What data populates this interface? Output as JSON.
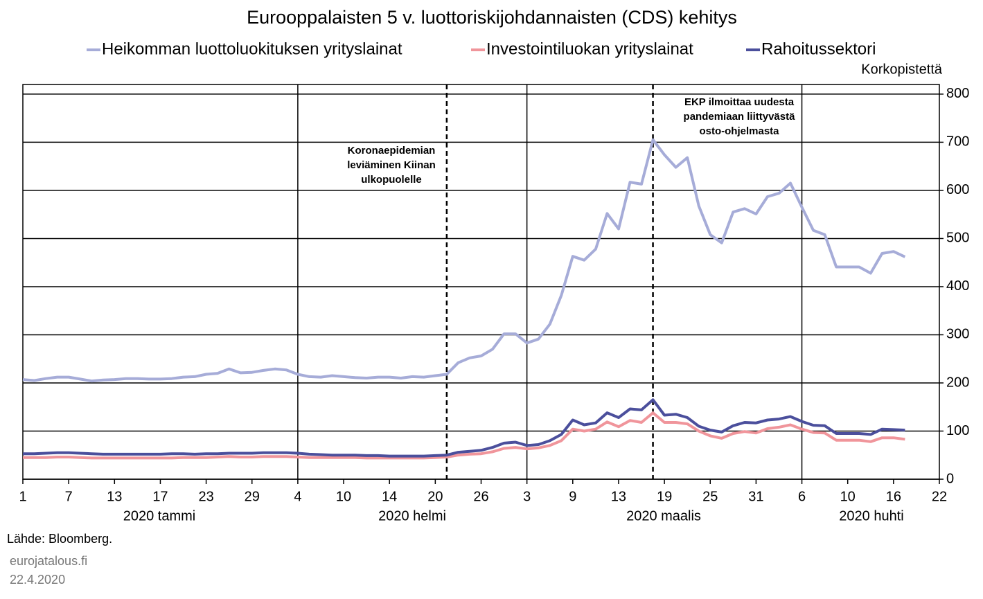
{
  "chart_data": {
    "type": "line",
    "title": "Eurooppalaisten 5 v. luottoriskijohdannaisten (CDS) kehitys",
    "y_axis_label": "Korkopistettä",
    "categories": [
      "1",
      null,
      null,
      null,
      "7",
      null,
      null,
      null,
      "13",
      null,
      null,
      null,
      "17",
      null,
      null,
      null,
      "23",
      null,
      null,
      null,
      "29",
      null,
      null,
      null,
      "4",
      null,
      null,
      null,
      "10",
      null,
      null,
      null,
      "14",
      null,
      null,
      null,
      "20",
      null,
      null,
      null,
      "26",
      null,
      null,
      null,
      "3",
      null,
      null,
      null,
      "9",
      null,
      null,
      null,
      "13",
      null,
      null,
      null,
      "19",
      null,
      null,
      null,
      "25",
      null,
      null,
      null,
      "31",
      null,
      null,
      null,
      "6",
      null,
      null,
      null,
      "10",
      null,
      null,
      null,
      "16",
      null,
      null,
      null,
      "22"
    ],
    "month_labels": [
      "2020 tammi",
      "2020 helmi",
      "2020 maalis",
      "2020 huhti"
    ],
    "series": [
      {
        "name": "Heikomman luottoluokituksen yrityslainat",
        "color": "#a6acd8",
        "values": [
          207,
          205,
          209,
          212,
          212,
          208,
          204,
          206,
          207,
          209,
          209,
          208,
          208,
          209,
          212,
          213,
          218,
          220,
          229,
          221,
          222,
          226,
          229,
          227,
          218,
          213,
          212,
          215,
          213,
          211,
          210,
          212,
          212,
          210,
          213,
          212,
          215,
          218,
          242,
          252,
          256,
          270,
          302,
          302,
          283,
          291,
          322,
          382,
          463,
          455,
          478,
          552,
          520,
          617,
          613,
          705,
          674,
          648,
          668,
          568,
          508,
          491,
          555,
          562,
          551,
          587,
          594,
          615,
          565,
          517,
          508,
          441,
          441,
          441,
          428,
          469,
          473,
          462,
          null,
          null,
          null
        ]
      },
      {
        "name": "Investointiluokan yrityslainat",
        "color": "#f0959b",
        "values": [
          45,
          45,
          45,
          46,
          46,
          45,
          44,
          44,
          44,
          44,
          44,
          44,
          44,
          44,
          45,
          45,
          45,
          46,
          47,
          46,
          46,
          47,
          47,
          47,
          46,
          45,
          45,
          45,
          45,
          45,
          44,
          44,
          44,
          44,
          44,
          44,
          45,
          46,
          50,
          52,
          53,
          57,
          64,
          66,
          63,
          65,
          70,
          80,
          104,
          100,
          104,
          119,
          109,
          122,
          118,
          138,
          118,
          118,
          115,
          100,
          90,
          85,
          95,
          99,
          96,
          105,
          108,
          113,
          104,
          97,
          96,
          81,
          81,
          81,
          78,
          86,
          86,
          83,
          null,
          null,
          null
        ]
      },
      {
        "name": "Rahoitussektori",
        "color": "#4b4f9c",
        "values": [
          53,
          53,
          54,
          55,
          55,
          54,
          53,
          52,
          52,
          52,
          52,
          52,
          52,
          53,
          53,
          52,
          53,
          53,
          54,
          54,
          54,
          55,
          55,
          55,
          54,
          52,
          51,
          50,
          50,
          50,
          49,
          49,
          48,
          48,
          48,
          48,
          49,
          50,
          56,
          58,
          60,
          66,
          75,
          77,
          70,
          72,
          80,
          93,
          123,
          113,
          117,
          138,
          128,
          146,
          144,
          165,
          133,
          135,
          128,
          110,
          102,
          98,
          111,
          118,
          117,
          123,
          125,
          130,
          120,
          112,
          111,
          95,
          95,
          95,
          93,
          104,
          103,
          102,
          null,
          null,
          null
        ]
      }
    ],
    "ylim": [
      0,
      820
    ],
    "yticks": [
      0,
      100,
      200,
      300,
      400,
      500,
      600,
      700,
      800
    ],
    "grid": true,
    "annotations": [
      {
        "lines": [
          "Koronaepidemian",
          "leviäminen Kiinan",
          "ulkopuolelle"
        ]
      },
      {
        "lines": [
          "EKP ilmoittaa uudesta",
          "pandemiaan liittyvästä",
          "osto-ohjelmasta"
        ]
      }
    ],
    "source": "Lähde: Bloomberg.",
    "publisher": "eurojatalous.fi",
    "date": "22.4.2020"
  }
}
